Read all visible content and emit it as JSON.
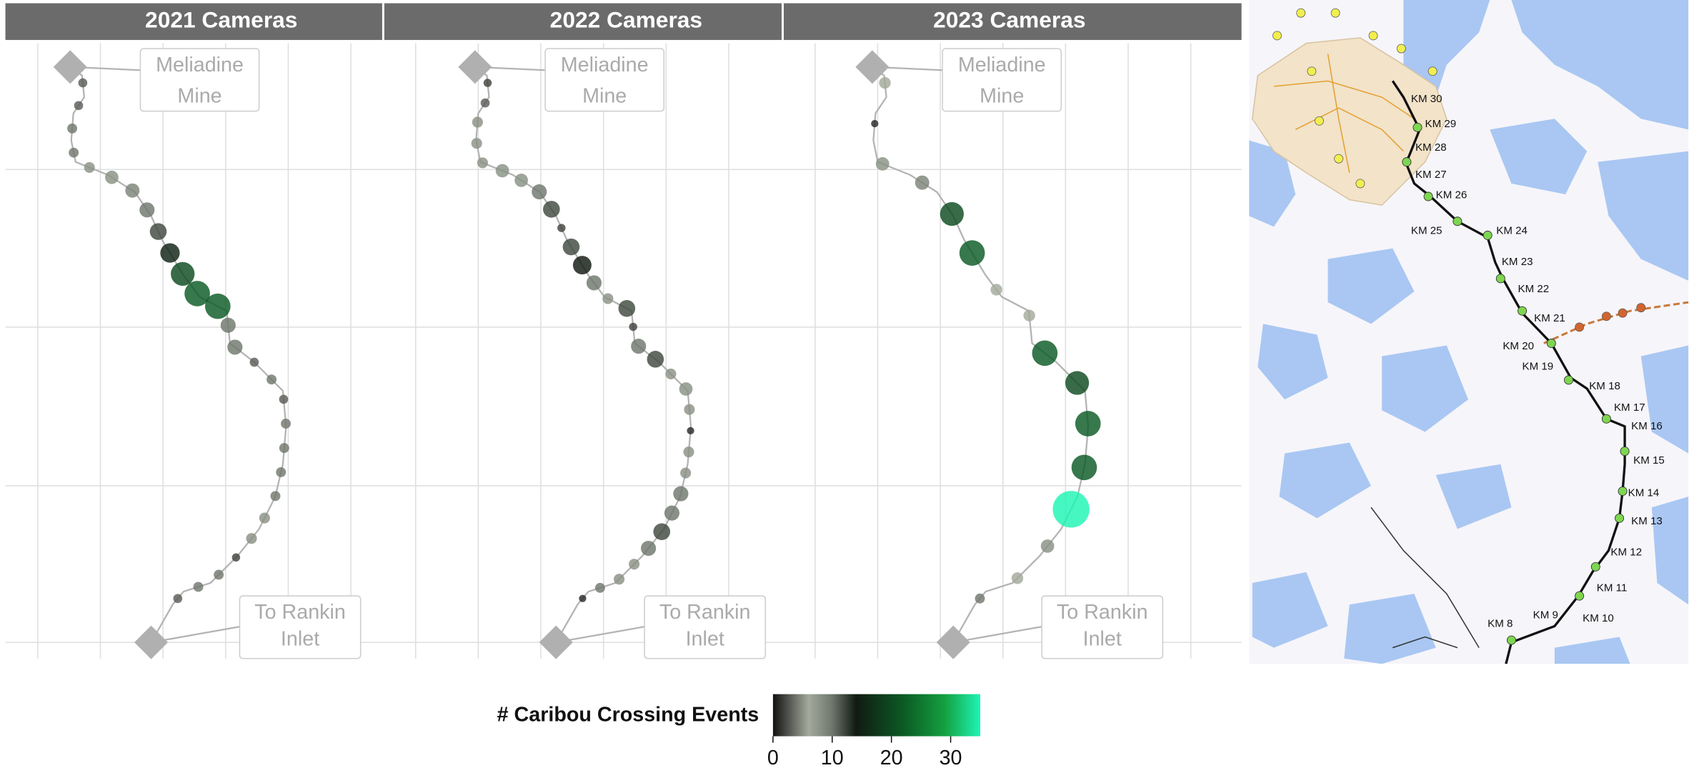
{
  "chart_data": [
    {
      "type": "bubble",
      "title": "2021 Cameras",
      "values": [
        3,
        3,
        4,
        4,
        5,
        8,
        9,
        10,
        12,
        15,
        20,
        22,
        22,
        10,
        10,
        3,
        4,
        3,
        4,
        4,
        4,
        4,
        5,
        5,
        2,
        4,
        4,
        3
      ]
    },
    {
      "type": "bubble",
      "title": "2022 Cameras",
      "values": [
        2,
        3,
        5,
        5,
        5,
        8,
        8,
        10,
        12,
        2,
        12,
        14,
        10,
        5,
        12,
        2,
        10,
        12,
        5,
        8,
        5,
        1,
        5,
        5,
        10,
        10,
        12,
        10,
        5,
        5,
        4,
        1
      ]
    },
    {
      "type": "bubble",
      "title": "2023 Cameras",
      "values": [
        6,
        1,
        8,
        9,
        20,
        22,
        6,
        6,
        22,
        20,
        22,
        22,
        35,
        8,
        6,
        4
      ]
    }
  ],
  "annotations": {
    "top": [
      "Meliadine",
      "Mine"
    ],
    "bottom": [
      "To Rankin",
      "Inlet"
    ]
  },
  "colorbar": {
    "title": "# Caribou Crossing Events",
    "lim": [
      0,
      35
    ],
    "ticks": [
      0,
      10,
      20,
      30
    ],
    "colorscale": [
      [
        0,
        "#111111"
      ],
      [
        6,
        "#a3aa9c"
      ],
      [
        10,
        "#6f776c"
      ],
      [
        14,
        "#111a12"
      ],
      [
        22,
        "#0b5a24"
      ],
      [
        29,
        "#14a040"
      ],
      [
        35,
        "#1ef5b5"
      ]
    ]
  },
  "map": {
    "km_labels": [
      "KM 30",
      "KM 29",
      "KM 28",
      "KM 27",
      "KM 26",
      "KM 25",
      "KM 24",
      "KM 23",
      "KM 22",
      "KM 21",
      "KM 20",
      "KM 19",
      "KM 18",
      "KM 17",
      "KM 16",
      "KM 15",
      "KM 14",
      "KM 13",
      "KM 12",
      "KM 11",
      "KM 10",
      "KM 9",
      "KM 8"
    ]
  }
}
